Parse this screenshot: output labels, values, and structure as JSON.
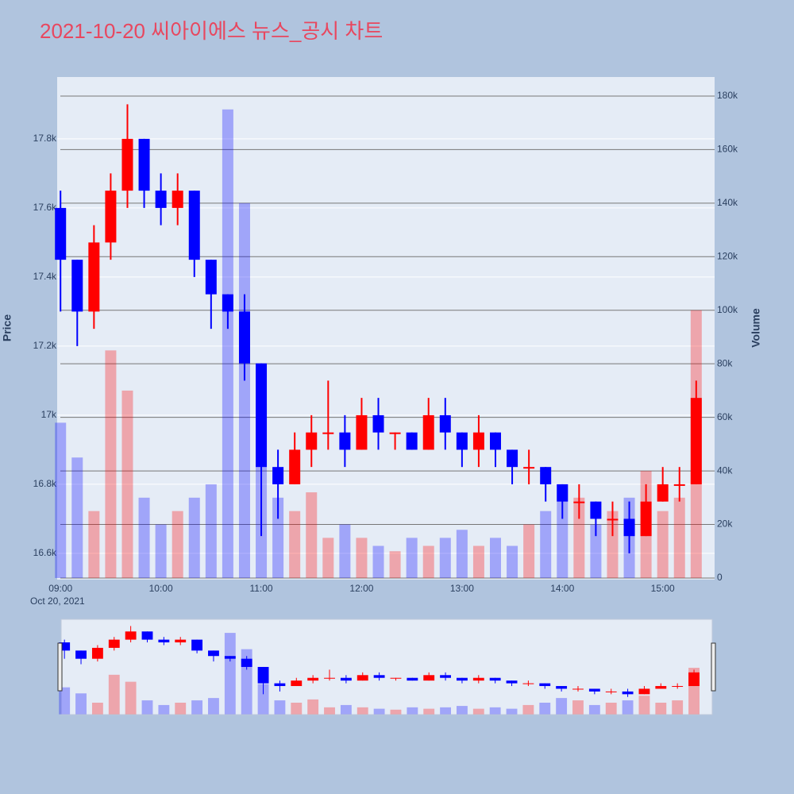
{
  "chart_data": {
    "type": "candlestick",
    "title": "2021-10-20 씨아이에스 뉴스_공시 차트",
    "ylabel": "Price",
    "y2label": "Volume",
    "x": [
      "09:00",
      "09:10",
      "09:20",
      "09:30",
      "09:40",
      "09:50",
      "10:00",
      "10:10",
      "10:20",
      "10:30",
      "10:40",
      "10:50",
      "11:00",
      "11:10",
      "11:20",
      "11:30",
      "11:40",
      "11:50",
      "12:00",
      "12:10",
      "12:20",
      "12:30",
      "12:40",
      "12:50",
      "13:00",
      "13:10",
      "13:20",
      "13:30",
      "13:40",
      "13:50",
      "14:00",
      "14:10",
      "14:20",
      "14:30",
      "14:40",
      "14:50",
      "15:00",
      "15:10",
      "15:20"
    ],
    "open": [
      17600,
      17450,
      17300,
      17500,
      17650,
      17800,
      17650,
      17600,
      17650,
      17450,
      17350,
      17300,
      17150,
      16850,
      16800,
      16900,
      16950,
      16950,
      16900,
      17000,
      16950,
      16950,
      16900,
      17000,
      16950,
      16900,
      16950,
      16900,
      16850,
      16850,
      16800,
      16750,
      16750,
      16700,
      16700,
      16650,
      16750,
      16800,
      16800
    ],
    "high": [
      17650,
      17450,
      17550,
      17700,
      17900,
      17800,
      17700,
      17700,
      17650,
      17450,
      17350,
      17350,
      17150,
      16900,
      16950,
      17000,
      17100,
      17000,
      17050,
      17050,
      16950,
      16950,
      17050,
      17050,
      16950,
      17000,
      16950,
      16900,
      16900,
      16850,
      16800,
      16800,
      16750,
      16750,
      16750,
      16800,
      16850,
      16850,
      17100
    ],
    "low": [
      17300,
      17200,
      17250,
      17450,
      17600,
      17600,
      17550,
      17550,
      17400,
      17250,
      17250,
      17100,
      16650,
      16700,
      16800,
      16850,
      16900,
      16850,
      16900,
      16900,
      16900,
      16900,
      16900,
      16900,
      16850,
      16850,
      16850,
      16800,
      16800,
      16750,
      16700,
      16700,
      16650,
      16650,
      16600,
      16650,
      16750,
      16750,
      16800
    ],
    "close": [
      17450,
      17300,
      17500,
      17650,
      17800,
      17650,
      17600,
      17650,
      17450,
      17350,
      17300,
      17150,
      16850,
      16800,
      16900,
      16950,
      16950,
      16900,
      17000,
      16950,
      16950,
      16900,
      17000,
      16950,
      16900,
      16950,
      16900,
      16850,
      16850,
      16800,
      16750,
      16750,
      16700,
      16700,
      16650,
      16750,
      16800,
      16800,
      17050
    ],
    "volume": [
      58000,
      45000,
      25000,
      85000,
      70000,
      30000,
      20000,
      25000,
      30000,
      35000,
      175000,
      140000,
      65000,
      30000,
      25000,
      32000,
      15000,
      20000,
      15000,
      12000,
      10000,
      15000,
      12000,
      15000,
      18000,
      12000,
      15000,
      12000,
      20000,
      25000,
      35000,
      30000,
      20000,
      25000,
      30000,
      40000,
      25000,
      30000,
      100000
    ],
    "increasing_color": "#ff0000",
    "decreasing_color": "#0000ff",
    "xlim": [
      "08:58",
      "15:31"
    ],
    "xticks": [
      "09:00",
      "10:00",
      "11:00",
      "12:00",
      "13:00",
      "14:00",
      "15:00"
    ],
    "x_date_label": "Oct 20, 2021",
    "ylim": [
      16524,
      17979
    ],
    "yticks": [
      {
        "value": 16600,
        "label": "16.6k"
      },
      {
        "value": 16800,
        "label": "16.8k"
      },
      {
        "value": 17000,
        "label": "17k"
      },
      {
        "value": 17200,
        "label": "17.2k"
      },
      {
        "value": 17400,
        "label": "17.4k"
      },
      {
        "value": 17600,
        "label": "17.6k"
      },
      {
        "value": 17800,
        "label": "17.8k"
      }
    ],
    "y2lim": [
      -600,
      187100
    ],
    "y2ticks": [
      0,
      {
        "value": 20000,
        "label": "20k"
      },
      {
        "value": 40000,
        "label": "40k"
      },
      {
        "value": 60000,
        "label": "60k"
      },
      {
        "value": 80000,
        "label": "80k"
      },
      {
        "value": 100000,
        "label": "100k"
      },
      {
        "value": 120000,
        "label": "120k"
      },
      {
        "value": 140000,
        "label": "140k"
      },
      {
        "value": 160000,
        "label": "160k"
      },
      {
        "value": 180000,
        "label": "180k"
      }
    ],
    "grid": true,
    "rangeslider": true
  }
}
